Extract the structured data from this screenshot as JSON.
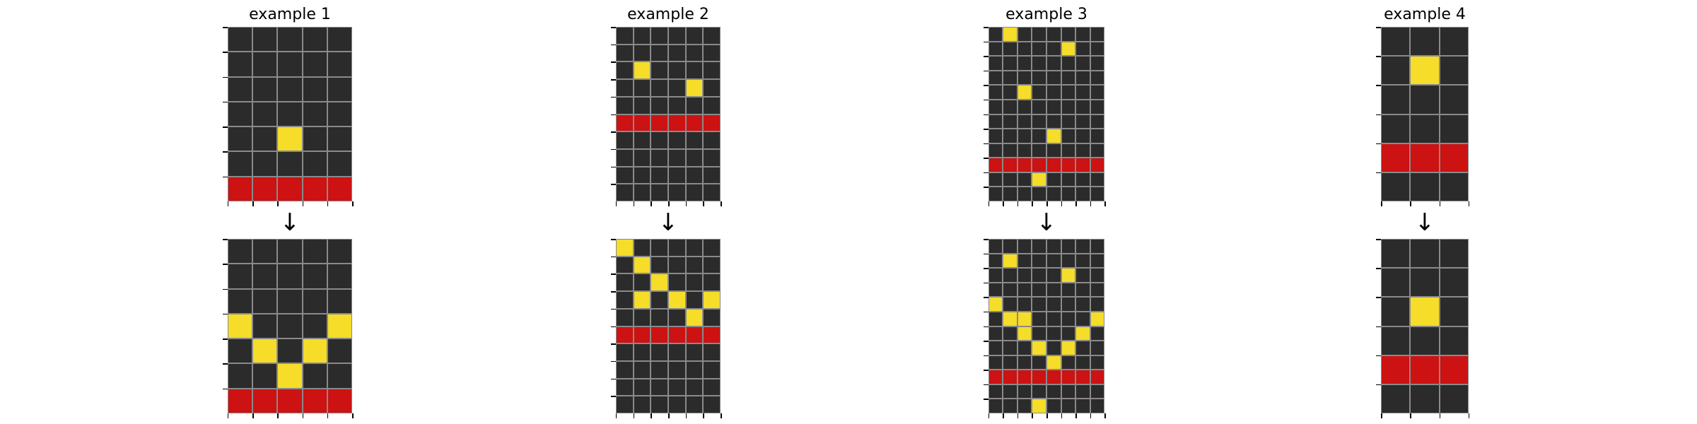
{
  "colors": {
    "0": "#2b2b2b",
    "2": "#cc1212",
    "4": "#f5dd2a",
    "grid_line": "#8a8a8a"
  },
  "arrow_glyph": "↓",
  "examples": [
    {
      "title": "example 1",
      "input": [
        [
          0,
          0,
          0,
          0,
          0
        ],
        [
          0,
          0,
          0,
          0,
          0
        ],
        [
          0,
          0,
          0,
          0,
          0
        ],
        [
          0,
          0,
          0,
          0,
          0
        ],
        [
          0,
          0,
          4,
          0,
          0
        ],
        [
          0,
          0,
          0,
          0,
          0
        ],
        [
          2,
          2,
          2,
          2,
          2
        ]
      ],
      "output": [
        [
          0,
          0,
          0,
          0,
          0
        ],
        [
          0,
          0,
          0,
          0,
          0
        ],
        [
          0,
          0,
          0,
          0,
          0
        ],
        [
          4,
          0,
          0,
          0,
          4
        ],
        [
          0,
          4,
          0,
          4,
          0
        ],
        [
          0,
          0,
          4,
          0,
          0
        ],
        [
          2,
          2,
          2,
          2,
          2
        ]
      ]
    },
    {
      "title": "example 2",
      "input": [
        [
          0,
          0,
          0,
          0,
          0,
          0
        ],
        [
          0,
          0,
          0,
          0,
          0,
          0
        ],
        [
          0,
          4,
          0,
          0,
          0,
          0
        ],
        [
          0,
          0,
          0,
          0,
          4,
          0
        ],
        [
          0,
          0,
          0,
          0,
          0,
          0
        ],
        [
          2,
          2,
          2,
          2,
          2,
          2
        ],
        [
          0,
          0,
          0,
          0,
          0,
          0
        ],
        [
          0,
          0,
          0,
          0,
          0,
          0
        ],
        [
          0,
          0,
          0,
          0,
          0,
          0
        ],
        [
          0,
          0,
          0,
          0,
          0,
          0
        ]
      ],
      "output": [
        [
          4,
          0,
          0,
          0,
          0,
          0
        ],
        [
          0,
          4,
          0,
          0,
          0,
          0
        ],
        [
          0,
          0,
          4,
          0,
          0,
          0
        ],
        [
          0,
          4,
          0,
          4,
          0,
          4
        ],
        [
          0,
          0,
          0,
          0,
          4,
          0
        ],
        [
          2,
          2,
          2,
          2,
          2,
          2
        ],
        [
          0,
          0,
          0,
          0,
          0,
          0
        ],
        [
          0,
          0,
          0,
          0,
          0,
          0
        ],
        [
          0,
          0,
          0,
          0,
          0,
          0
        ],
        [
          0,
          0,
          0,
          0,
          0,
          0
        ]
      ]
    },
    {
      "title": "example 3",
      "input": [
        [
          0,
          4,
          0,
          0,
          0,
          0,
          0,
          0
        ],
        [
          0,
          0,
          0,
          0,
          0,
          4,
          0,
          0
        ],
        [
          0,
          0,
          0,
          0,
          0,
          0,
          0,
          0
        ],
        [
          0,
          0,
          0,
          0,
          0,
          0,
          0,
          0
        ],
        [
          0,
          0,
          4,
          0,
          0,
          0,
          0,
          0
        ],
        [
          0,
          0,
          0,
          0,
          0,
          0,
          0,
          0
        ],
        [
          0,
          0,
          0,
          0,
          0,
          0,
          0,
          0
        ],
        [
          0,
          0,
          0,
          0,
          4,
          0,
          0,
          0
        ],
        [
          0,
          0,
          0,
          0,
          0,
          0,
          0,
          0
        ],
        [
          2,
          2,
          2,
          2,
          2,
          2,
          2,
          2
        ],
        [
          0,
          0,
          0,
          4,
          0,
          0,
          0,
          0
        ],
        [
          0,
          0,
          0,
          0,
          0,
          0,
          0,
          0
        ]
      ],
      "output": [
        [
          0,
          0,
          0,
          0,
          0,
          0,
          0,
          0
        ],
        [
          0,
          4,
          0,
          0,
          0,
          0,
          0,
          0
        ],
        [
          0,
          0,
          0,
          0,
          0,
          4,
          0,
          0
        ],
        [
          0,
          0,
          0,
          0,
          0,
          0,
          0,
          0
        ],
        [
          4,
          0,
          0,
          0,
          0,
          0,
          0,
          0
        ],
        [
          0,
          4,
          4,
          0,
          0,
          0,
          0,
          4
        ],
        [
          0,
          0,
          4,
          0,
          0,
          0,
          4,
          0
        ],
        [
          0,
          0,
          0,
          4,
          0,
          4,
          0,
          0
        ],
        [
          0,
          0,
          0,
          0,
          4,
          0,
          0,
          0
        ],
        [
          2,
          2,
          2,
          2,
          2,
          2,
          2,
          2
        ],
        [
          0,
          0,
          0,
          0,
          0,
          0,
          0,
          0
        ],
        [
          0,
          0,
          0,
          4,
          0,
          0,
          0,
          0
        ]
      ]
    },
    {
      "title": "example 4",
      "input": [
        [
          0,
          0,
          0
        ],
        [
          0,
          4,
          0
        ],
        [
          0,
          0,
          0
        ],
        [
          0,
          0,
          0
        ],
        [
          2,
          2,
          2
        ],
        [
          0,
          0,
          0
        ]
      ],
      "output": [
        [
          0,
          0,
          0
        ],
        [
          0,
          0,
          0
        ],
        [
          0,
          4,
          0
        ],
        [
          0,
          0,
          0
        ],
        [
          2,
          2,
          2
        ],
        [
          0,
          0,
          0
        ]
      ]
    }
  ]
}
